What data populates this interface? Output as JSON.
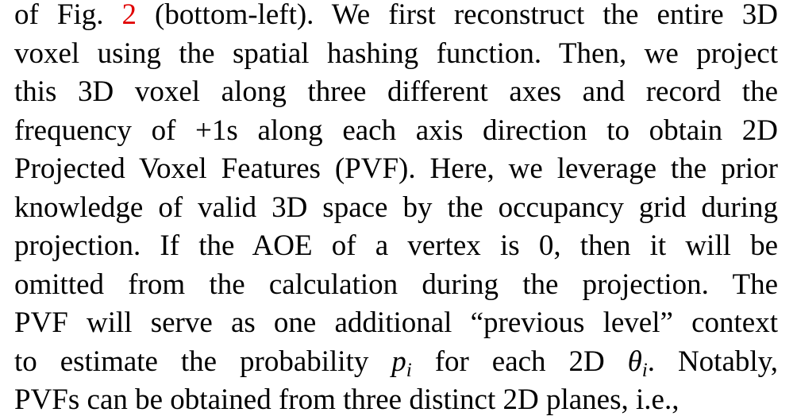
{
  "paragraph": {
    "line1": {
      "pre": "of Fig. ",
      "ref": "2",
      "post": " (bottom-left).  We first reconstruct the entire 3D"
    },
    "line2": "voxel using the spatial hashing function.  Then, we project",
    "line3": "this 3D voxel along three different axes and record the",
    "line4": "frequency of +1s along each axis direction to obtain 2D",
    "line5": "Projected Voxel Features (PVF). Here, we leverage the prior",
    "line6": "knowledge of valid 3D space by the occupancy grid during",
    "line7": "projection.  If the AOE of a vertex is 0, then it will be",
    "line8": "omitted from the calculation during the projection.  The",
    "line9": "PVF will serve as one additional “previous level” context",
    "line10": {
      "pre": "to estimate the probability ",
      "p": "p",
      "p_sub": "i",
      "mid": " for each 2D ",
      "theta": "θ",
      "theta_sub": "i",
      "post": ".  Notably,"
    },
    "line11": "PVFs can be obtained from three distinct 2D planes, i.e.,"
  },
  "colors": {
    "text": "#000000",
    "reference_link": "#e00000"
  }
}
